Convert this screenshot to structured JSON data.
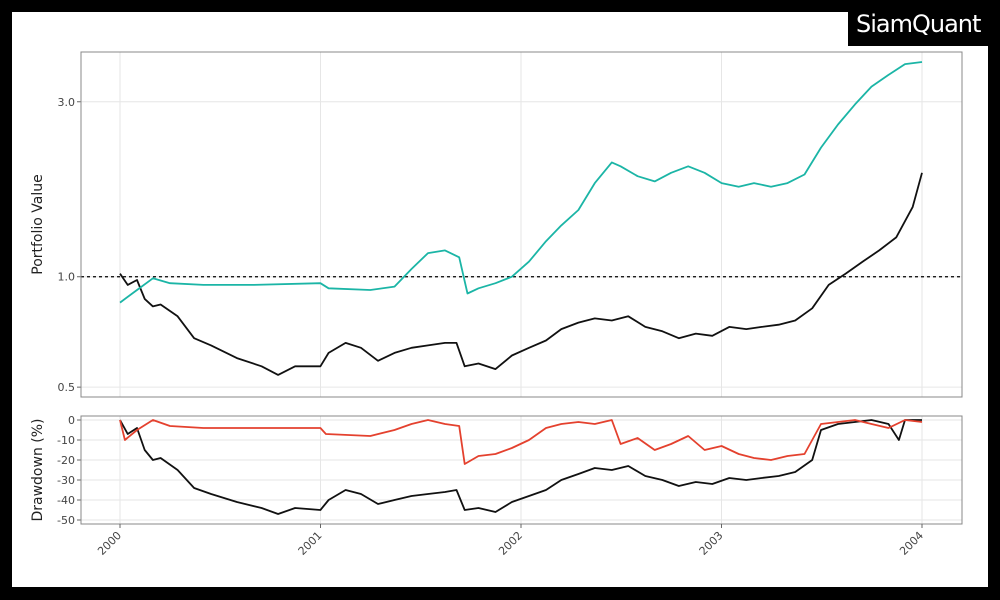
{
  "brand": {
    "name": "SiamQuant"
  },
  "colors": {
    "strategy": "#1bb5a6",
    "benchmark": "#111111",
    "strategy_drawdown": "#e4412e",
    "benchmark_drawdown": "#111111",
    "reference": "#000000"
  },
  "chart_data": [
    {
      "type": "line",
      "panel": "top",
      "ylabel": "Portfolio Value",
      "scale": "log",
      "ylim": [
        0.47,
        4.1
      ],
      "xlim": [
        "2000-01-01",
        "2004-01-01"
      ],
      "yticks": [
        0.5,
        1.0,
        3.0
      ],
      "yticklabels": [
        "0.5",
        "1.0",
        "3.0"
      ],
      "xticklabels": [
        "2000",
        "2001",
        "2002",
        "2003",
        "2004"
      ],
      "reference_line": 1.0,
      "grid": true,
      "series": [
        {
          "color": "#1bb5a6",
          "x": [
            "2000-01-01",
            "2000-02-01",
            "2000-03-01",
            "2000-04-01",
            "2000-06-01",
            "2000-09-01",
            "2000-12-31",
            "2001-01-15",
            "2001-04-01",
            "2001-05-15",
            "2001-06-15",
            "2001-07-15",
            "2001-08-15",
            "2001-09-10",
            "2001-09-25",
            "2001-10-15",
            "2001-11-15",
            "2001-12-15",
            "2002-01-15",
            "2002-02-15",
            "2002-03-15",
            "2002-04-15",
            "2002-05-15",
            "2002-06-15",
            "2002-07-01",
            "2002-08-01",
            "2002-09-01",
            "2002-10-01",
            "2002-11-01",
            "2002-12-01",
            "2003-01-01",
            "2003-02-01",
            "2003-03-01",
            "2003-04-01",
            "2003-05-01",
            "2003-06-01",
            "2003-07-01",
            "2003-08-01",
            "2003-09-01",
            "2003-10-01",
            "2003-11-01",
            "2003-12-01",
            "2004-01-01"
          ],
          "y": [
            0.85,
            0.92,
            0.99,
            0.96,
            0.95,
            0.95,
            0.96,
            0.93,
            0.92,
            0.94,
            1.05,
            1.16,
            1.18,
            1.13,
            0.9,
            0.93,
            0.96,
            1.0,
            1.1,
            1.25,
            1.38,
            1.52,
            1.8,
            2.05,
            2.0,
            1.88,
            1.82,
            1.92,
            2.0,
            1.92,
            1.8,
            1.76,
            1.8,
            1.76,
            1.8,
            1.9,
            2.25,
            2.6,
            2.95,
            3.3,
            3.55,
            3.8,
            3.85
          ]
        },
        {
          "color": "#111111",
          "x": [
            "2000-01-01",
            "2000-01-15",
            "2000-02-01",
            "2000-02-15",
            "2000-03-01",
            "2000-03-15",
            "2000-04-15",
            "2000-05-15",
            "2000-06-15",
            "2000-08-01",
            "2000-09-15",
            "2000-10-15",
            "2000-11-15",
            "2000-12-31",
            "2001-01-15",
            "2001-02-15",
            "2001-03-15",
            "2001-04-15",
            "2001-05-15",
            "2001-06-15",
            "2001-07-15",
            "2001-08-15",
            "2001-09-05",
            "2001-09-20",
            "2001-10-15",
            "2001-11-15",
            "2001-12-15",
            "2002-01-15",
            "2002-02-15",
            "2002-03-15",
            "2002-04-15",
            "2002-05-15",
            "2002-06-15",
            "2002-07-15",
            "2002-08-15",
            "2002-09-15",
            "2002-10-15",
            "2002-11-15",
            "2002-12-15",
            "2003-01-15",
            "2003-02-15",
            "2003-03-15",
            "2003-04-15",
            "2003-05-15",
            "2003-06-15",
            "2003-07-15",
            "2003-08-15",
            "2003-09-15",
            "2003-10-15",
            "2003-11-15",
            "2003-12-15",
            "2004-01-01"
          ],
          "y": [
            1.02,
            0.95,
            0.98,
            0.87,
            0.83,
            0.84,
            0.78,
            0.68,
            0.65,
            0.6,
            0.57,
            0.54,
            0.57,
            0.57,
            0.62,
            0.66,
            0.64,
            0.59,
            0.62,
            0.64,
            0.65,
            0.66,
            0.66,
            0.57,
            0.58,
            0.56,
            0.61,
            0.64,
            0.67,
            0.72,
            0.75,
            0.77,
            0.76,
            0.78,
            0.73,
            0.71,
            0.68,
            0.7,
            0.69,
            0.73,
            0.72,
            0.73,
            0.74,
            0.76,
            0.82,
            0.95,
            1.02,
            1.1,
            1.18,
            1.28,
            1.55,
            1.92
          ]
        }
      ]
    },
    {
      "type": "line",
      "panel": "bottom",
      "ylabel": "Drawdown (%)",
      "ylim": [
        -52,
        2
      ],
      "xlim": [
        "2000-01-01",
        "2004-01-01"
      ],
      "yticks": [
        0,
        -10,
        -20,
        -30,
        -40,
        -50
      ],
      "yticklabels": [
        "0",
        "-10",
        "-20",
        "-30",
        "-40",
        "-50"
      ],
      "grid": true,
      "series": [
        {
          "color": "#e4412e",
          "x": [
            "2000-01-01",
            "2000-01-10",
            "2000-02-01",
            "2000-03-01",
            "2000-04-01",
            "2000-06-01",
            "2000-09-01",
            "2000-12-31",
            "2001-01-10",
            "2001-04-01",
            "2001-05-15",
            "2001-06-15",
            "2001-07-15",
            "2001-08-15",
            "2001-09-10",
            "2001-09-20",
            "2001-10-15",
            "2001-11-15",
            "2001-12-15",
            "2002-01-15",
            "2002-02-15",
            "2002-03-15",
            "2002-04-15",
            "2002-05-15",
            "2002-06-15",
            "2002-07-01",
            "2002-08-01",
            "2002-09-01",
            "2002-10-01",
            "2002-11-01",
            "2002-12-01",
            "2003-01-01",
            "2003-02-01",
            "2003-03-01",
            "2003-04-01",
            "2003-05-01",
            "2003-06-01",
            "2003-07-01",
            "2003-08-01",
            "2003-09-01",
            "2003-10-01",
            "2003-11-01",
            "2003-12-01",
            "2004-01-01"
          ],
          "y": [
            0,
            -10,
            -5,
            0,
            -3,
            -4,
            -4,
            -4,
            -7,
            -8,
            -5,
            -2,
            0,
            -2,
            -3,
            -22,
            -18,
            -17,
            -14,
            -10,
            -4,
            -2,
            -1,
            -2,
            0,
            -12,
            -9,
            -15,
            -12,
            -8,
            -15,
            -13,
            -17,
            -19,
            -20,
            -18,
            -17,
            -2,
            -1,
            0,
            -2,
            -4,
            0,
            -1
          ]
        },
        {
          "color": "#111111",
          "x": [
            "2000-01-01",
            "2000-01-15",
            "2000-02-01",
            "2000-02-15",
            "2000-03-01",
            "2000-03-15",
            "2000-04-15",
            "2000-05-15",
            "2000-06-15",
            "2000-08-01",
            "2000-09-15",
            "2000-10-15",
            "2000-11-15",
            "2000-12-31",
            "2001-01-15",
            "2001-02-15",
            "2001-03-15",
            "2001-04-15",
            "2001-05-15",
            "2001-06-15",
            "2001-07-15",
            "2001-08-15",
            "2001-09-05",
            "2001-09-20",
            "2001-10-15",
            "2001-11-15",
            "2001-12-15",
            "2002-01-15",
            "2002-02-15",
            "2002-03-15",
            "2002-04-15",
            "2002-05-15",
            "2002-06-15",
            "2002-07-15",
            "2002-08-15",
            "2002-09-15",
            "2002-10-15",
            "2002-11-15",
            "2002-12-15",
            "2003-01-15",
            "2003-02-15",
            "2003-03-15",
            "2003-04-15",
            "2003-05-15",
            "2003-06-15",
            "2003-07-01",
            "2003-08-01",
            "2003-09-01",
            "2003-10-01",
            "2003-11-01",
            "2003-11-20",
            "2003-12-01",
            "2004-01-01"
          ],
          "y": [
            0,
            -7,
            -4,
            -15,
            -20,
            -19,
            -25,
            -34,
            -37,
            -41,
            -44,
            -47,
            -44,
            -45,
            -40,
            -35,
            -37,
            -42,
            -40,
            -38,
            -37,
            -36,
            -35,
            -45,
            -44,
            -46,
            -41,
            -38,
            -35,
            -30,
            -27,
            -24,
            -25,
            -23,
            -28,
            -30,
            -33,
            -31,
            -32,
            -29,
            -30,
            -29,
            -28,
            -26,
            -20,
            -5,
            -2,
            -1,
            0,
            -2,
            -10,
            0,
            0
          ]
        }
      ]
    }
  ]
}
